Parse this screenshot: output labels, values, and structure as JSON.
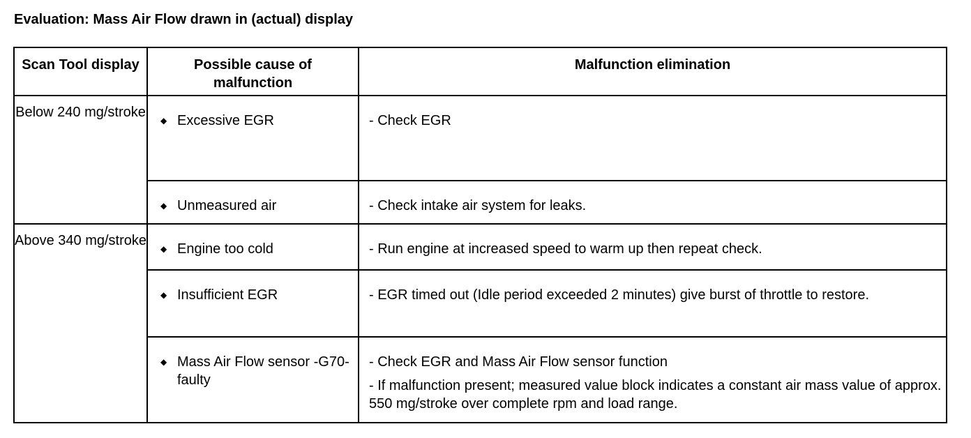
{
  "title": "Evaluation: Mass Air Flow drawn in (actual) display",
  "headers": [
    "Scan Tool display",
    "Possible cause of malfunction",
    "Malfunction elimination"
  ],
  "groups": [
    {
      "display": "Below 240 mg/stroke",
      "rows": [
        {
          "cause": "Excessive EGR",
          "elimination": [
            "- Check EGR"
          ]
        },
        {
          "cause": "Unmeasured air",
          "elimination": [
            "- Check intake air system for leaks."
          ]
        }
      ]
    },
    {
      "display": "Above 340 mg/stroke",
      "rows": [
        {
          "cause": "Engine too cold",
          "elimination": [
            "- Run engine at increased speed to warm up then repeat check."
          ]
        },
        {
          "cause": "Insufficient EGR",
          "elimination": [
            "- EGR timed out (Idle period exceeded 2 minutes) give burst of throttle to restore."
          ]
        },
        {
          "cause": "Mass Air Flow sensor -G70- faulty",
          "elimination": [
            "- Check EGR and Mass Air Flow sensor function",
            "- If malfunction present; measured value block indicates a constant air mass value of approx. 550 mg/stroke over complete rpm and load range."
          ]
        }
      ]
    }
  ],
  "bullet_icon": "diamond-bullet-icon"
}
